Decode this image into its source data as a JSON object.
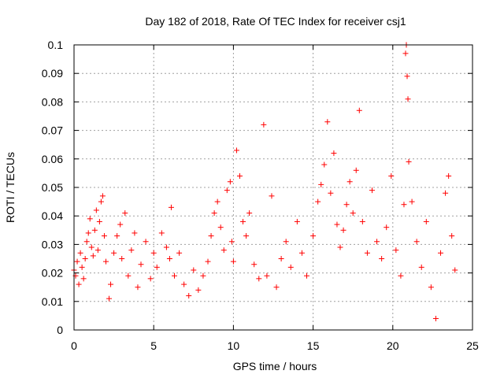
{
  "chart_data": {
    "type": "scatter",
    "title": "Day 182 of 2018, Rate Of TEC Index for receiver csj1",
    "xlabel": "GPS time / hours",
    "ylabel": "ROTI / TECUs",
    "xlim": [
      0,
      25
    ],
    "ylim": [
      0,
      0.1
    ],
    "x_ticks": [
      "0",
      "5",
      "10",
      "15",
      "20",
      "25"
    ],
    "y_ticks": [
      "0",
      "0.01",
      "0.02",
      "0.03",
      "0.04",
      "0.05",
      "0.06",
      "0.07",
      "0.08",
      "0.09",
      "0.1"
    ],
    "grid": true,
    "marker": "+",
    "marker_color": "#ff0000",
    "series": [
      {
        "name": "csj1",
        "points": [
          [
            0.0,
            0.021
          ],
          [
            0.1,
            0.019
          ],
          [
            0.2,
            0.024
          ],
          [
            0.3,
            0.016
          ],
          [
            0.4,
            0.027
          ],
          [
            0.5,
            0.022
          ],
          [
            0.6,
            0.018
          ],
          [
            0.7,
            0.025
          ],
          [
            0.8,
            0.031
          ],
          [
            0.9,
            0.034
          ],
          [
            1.0,
            0.039
          ],
          [
            1.1,
            0.029
          ],
          [
            1.2,
            0.026
          ],
          [
            1.3,
            0.035
          ],
          [
            1.4,
            0.042
          ],
          [
            1.5,
            0.028
          ],
          [
            1.6,
            0.038
          ],
          [
            1.7,
            0.045
          ],
          [
            1.8,
            0.047
          ],
          [
            1.9,
            0.033
          ],
          [
            2.0,
            0.024
          ],
          [
            2.2,
            0.011
          ],
          [
            2.3,
            0.016
          ],
          [
            2.5,
            0.027
          ],
          [
            2.7,
            0.033
          ],
          [
            2.9,
            0.037
          ],
          [
            3.0,
            0.025
          ],
          [
            3.2,
            0.041
          ],
          [
            3.4,
            0.019
          ],
          [
            3.6,
            0.028
          ],
          [
            3.8,
            0.034
          ],
          [
            4.0,
            0.015
          ],
          [
            4.2,
            0.023
          ],
          [
            4.5,
            0.031
          ],
          [
            4.8,
            0.018
          ],
          [
            5.0,
            0.027
          ],
          [
            5.2,
            0.022
          ],
          [
            5.5,
            0.034
          ],
          [
            5.8,
            0.029
          ],
          [
            6.0,
            0.025
          ],
          [
            6.1,
            0.043
          ],
          [
            6.3,
            0.019
          ],
          [
            6.6,
            0.027
          ],
          [
            6.9,
            0.016
          ],
          [
            7.2,
            0.012
          ],
          [
            7.5,
            0.021
          ],
          [
            7.8,
            0.014
          ],
          [
            8.1,
            0.019
          ],
          [
            8.4,
            0.024
          ],
          [
            8.6,
            0.033
          ],
          [
            8.8,
            0.041
          ],
          [
            9.0,
            0.045
          ],
          [
            9.2,
            0.036
          ],
          [
            9.4,
            0.028
          ],
          [
            9.6,
            0.049
          ],
          [
            9.8,
            0.052
          ],
          [
            9.9,
            0.031
          ],
          [
            10.0,
            0.024
          ],
          [
            10.2,
            0.063
          ],
          [
            10.4,
            0.054
          ],
          [
            10.6,
            0.038
          ],
          [
            10.8,
            0.033
          ],
          [
            11.0,
            0.041
          ],
          [
            11.3,
            0.023
          ],
          [
            11.6,
            0.018
          ],
          [
            11.9,
            0.072
          ],
          [
            12.1,
            0.019
          ],
          [
            12.4,
            0.047
          ],
          [
            12.7,
            0.015
          ],
          [
            13.0,
            0.025
          ],
          [
            13.3,
            0.031
          ],
          [
            13.6,
            0.022
          ],
          [
            14.0,
            0.038
          ],
          [
            14.3,
            0.027
          ],
          [
            14.6,
            0.019
          ],
          [
            15.0,
            0.033
          ],
          [
            15.3,
            0.045
          ],
          [
            15.5,
            0.051
          ],
          [
            15.7,
            0.058
          ],
          [
            15.9,
            0.073
          ],
          [
            16.1,
            0.048
          ],
          [
            16.3,
            0.062
          ],
          [
            16.5,
            0.037
          ],
          [
            16.7,
            0.029
          ],
          [
            16.9,
            0.035
          ],
          [
            17.1,
            0.044
          ],
          [
            17.3,
            0.052
          ],
          [
            17.5,
            0.041
          ],
          [
            17.7,
            0.056
          ],
          [
            17.9,
            0.077
          ],
          [
            18.1,
            0.038
          ],
          [
            18.4,
            0.027
          ],
          [
            18.7,
            0.049
          ],
          [
            19.0,
            0.031
          ],
          [
            19.3,
            0.025
          ],
          [
            19.6,
            0.036
          ],
          [
            19.9,
            0.054
          ],
          [
            20.2,
            0.028
          ],
          [
            20.5,
            0.019
          ],
          [
            20.7,
            0.044
          ],
          [
            20.8,
            0.097
          ],
          [
            20.85,
            0.1
          ],
          [
            20.9,
            0.089
          ],
          [
            20.95,
            0.081
          ],
          [
            21.0,
            0.059
          ],
          [
            21.2,
            0.045
          ],
          [
            21.5,
            0.031
          ],
          [
            21.8,
            0.022
          ],
          [
            22.1,
            0.038
          ],
          [
            22.4,
            0.015
          ],
          [
            22.7,
            0.004
          ],
          [
            23.0,
            0.027
          ],
          [
            23.3,
            0.048
          ],
          [
            23.5,
            0.054
          ],
          [
            23.7,
            0.033
          ],
          [
            23.9,
            0.021
          ]
        ]
      }
    ]
  }
}
